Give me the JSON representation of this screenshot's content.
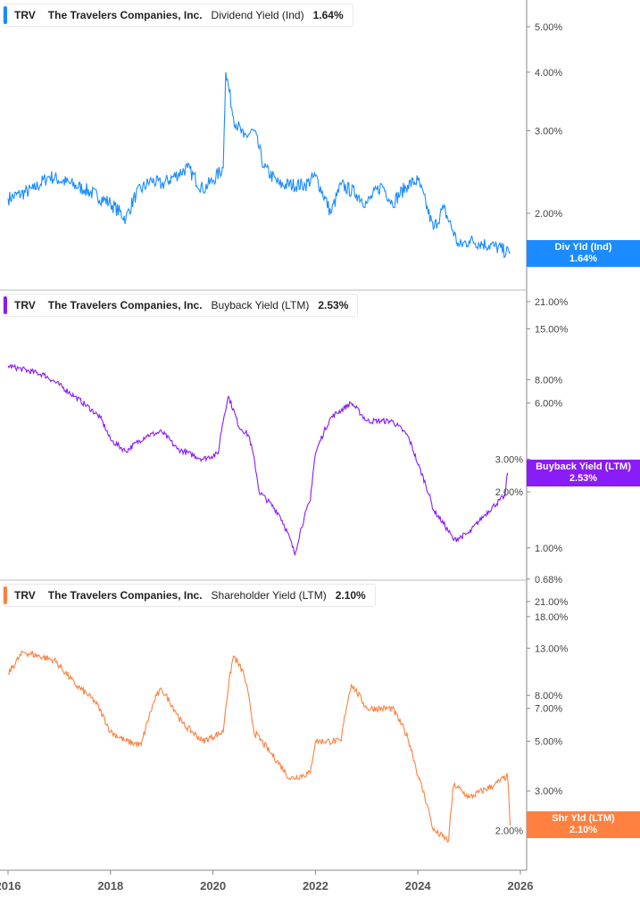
{
  "chart_data": [
    {
      "type": "line",
      "ticker": "TRV",
      "company": "The Travelers Companies, Inc.",
      "metric": "Dividend Yield (Ind)",
      "last_value": "1.64%",
      "tag_label": "Div Yld (Ind)",
      "color": "#1a8cff",
      "y_scale": "log",
      "y_ticks": [
        "5.00%",
        "4.00%",
        "3.00%",
        "2.00%"
      ],
      "y_tick_values": [
        5,
        4,
        3,
        2
      ],
      "ylim": [
        1.5,
        5.6
      ],
      "x": [
        2016.0,
        2016.5,
        2016.8,
        2017.5,
        2018.0,
        2018.3,
        2018.5,
        2018.8,
        2019.0,
        2019.5,
        2019.8,
        2020.0,
        2020.2,
        2020.25,
        2020.4,
        2020.6,
        2020.8,
        2021.0,
        2021.3,
        2021.8,
        2022.0,
        2022.3,
        2022.5,
        2022.8,
        2023.0,
        2023.3,
        2023.5,
        2023.8,
        2024.0,
        2024.3,
        2024.5,
        2024.8,
        2025.0,
        2025.5,
        2025.8
      ],
      "values": [
        2.15,
        2.25,
        2.4,
        2.25,
        2.1,
        1.95,
        2.2,
        2.35,
        2.3,
        2.5,
        2.25,
        2.35,
        2.5,
        4.0,
        3.2,
        2.9,
        3.0,
        2.5,
        2.3,
        2.3,
        2.4,
        2.0,
        2.3,
        2.2,
        2.1,
        2.3,
        2.1,
        2.3,
        2.35,
        1.85,
        2.05,
        1.7,
        1.75,
        1.7,
        1.64
      ]
    },
    {
      "type": "line",
      "ticker": "TRV",
      "company": "The Travelers Companies, Inc.",
      "metric": "Buyback Yield (LTM)",
      "last_value": "2.53%",
      "tag_label": "Buyback Yield (LTM)",
      "color": "#8a1cf5",
      "y_scale": "log",
      "y_ticks": [
        "21.00%",
        "15.00%",
        "8.00%",
        "6.00%",
        "3.00%",
        "2.00%",
        "1.00%",
        "0.68%"
      ],
      "y_tick_values": [
        21,
        15,
        8,
        6,
        3,
        2,
        1,
        0.68
      ],
      "ylim": [
        0.68,
        23
      ],
      "x": [
        2016.0,
        2016.7,
        2017.3,
        2017.8,
        2018.0,
        2018.3,
        2018.7,
        2019.0,
        2019.3,
        2019.8,
        2020.1,
        2020.3,
        2020.5,
        2020.7,
        2020.9,
        2021.3,
        2021.6,
        2021.9,
        2022.0,
        2022.3,
        2022.7,
        2023.0,
        2023.5,
        2023.8,
        2024.0,
        2024.3,
        2024.7,
        2025.0,
        2025.3,
        2025.7,
        2025.75
      ],
      "values": [
        9.5,
        8.5,
        6.5,
        5.0,
        3.8,
        3.3,
        4.0,
        4.2,
        3.4,
        3.0,
        3.2,
        6.5,
        4.5,
        4.0,
        2.0,
        1.5,
        0.92,
        1.8,
        3.2,
        5.0,
        6.0,
        4.8,
        4.8,
        4.0,
        2.8,
        1.6,
        1.1,
        1.2,
        1.5,
        1.9,
        2.53
      ]
    },
    {
      "type": "line",
      "ticker": "TRV",
      "company": "The Travelers Companies, Inc.",
      "metric": "Shareholder Yield (LTM)",
      "last_value": "2.10%",
      "tag_label": "Shr Yld (LTM)",
      "color": "#ff8040",
      "y_scale": "log",
      "y_ticks": [
        "21.00%",
        "18.00%",
        "13.00%",
        "8.00%",
        "7.00%",
        "5.00%",
        "3.00%",
        "2.00%"
      ],
      "y_tick_values": [
        21,
        18,
        13,
        8,
        7,
        5,
        3,
        2
      ],
      "ylim": [
        1.7,
        23
      ],
      "x": [
        2016.0,
        2016.3,
        2016.9,
        2017.3,
        2017.7,
        2018.0,
        2018.3,
        2018.6,
        2018.9,
        2019.0,
        2019.4,
        2019.8,
        2020.2,
        2020.4,
        2020.6,
        2020.8,
        2021.1,
        2021.5,
        2021.9,
        2022.0,
        2022.5,
        2022.7,
        2023.0,
        2023.5,
        2023.8,
        2024.0,
        2024.3,
        2024.6,
        2024.7,
        2025.0,
        2025.5,
        2025.75,
        2025.8
      ],
      "values": [
        10,
        12.5,
        11.5,
        9,
        7.5,
        5.5,
        5.0,
        4.8,
        8,
        8.5,
        6,
        5.0,
        5.5,
        12,
        10,
        5.5,
        4.5,
        3.4,
        3.6,
        5,
        5,
        9,
        7,
        7,
        5.2,
        3.5,
        2.0,
        1.8,
        3.2,
        2.8,
        3.2,
        3.5,
        2.1
      ]
    }
  ],
  "x_axis": {
    "ticks": [
      "2016",
      "2018",
      "2020",
      "2022",
      "2024",
      "2026"
    ],
    "tick_values": [
      2016,
      2018,
      2020,
      2022,
      2024,
      2026
    ]
  }
}
